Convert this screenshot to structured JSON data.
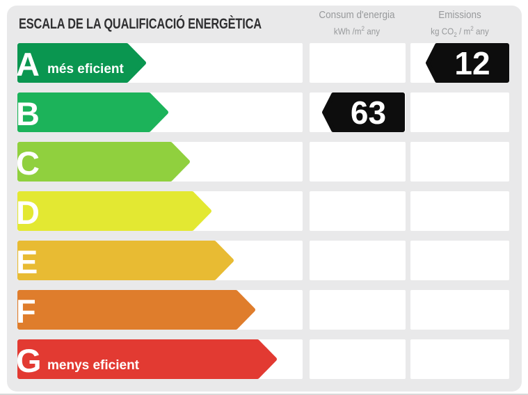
{
  "title": "ESCALA DE LA QUALIFICACIÓ ENERGÈTICA",
  "columns": {
    "consum": {
      "title": "Consum d'energia",
      "unit": {
        "pre": "kWh /m",
        "sup": "2",
        "post": " any"
      }
    },
    "emissions": {
      "title": "Emissions",
      "unit": {
        "pre": "kg CO",
        "sub": "2",
        "mid": " / m",
        "sup": "2",
        "post": " any"
      }
    }
  },
  "ratings": [
    {
      "letter": "A",
      "label": "més eficient",
      "color": "#0a9650"
    },
    {
      "letter": "B",
      "label": "",
      "color": "#1cb35a"
    },
    {
      "letter": "C",
      "label": "",
      "color": "#90d03e"
    },
    {
      "letter": "D",
      "label": "",
      "color": "#e3e832"
    },
    {
      "letter": "E",
      "label": "",
      "color": "#e8bb33"
    },
    {
      "letter": "F",
      "label": "",
      "color": "#df7d2c"
    },
    {
      "letter": "G",
      "label": "menys eficient",
      "color": "#e23a32"
    }
  ],
  "indicators": {
    "consum": {
      "row": "B",
      "value": "63"
    },
    "emissions": {
      "row": "A",
      "value": "12"
    }
  },
  "colors": {
    "card_bg": "#e9e9ea",
    "box_bg": "#ffffff",
    "indicator": "#0d0d0d",
    "title_text": "#2f2f31",
    "header_text": "#97999b"
  },
  "chart_data": {
    "type": "bar",
    "title": "ESCALA DE LA QUALIFICACIÓ ENERGÈTICA",
    "categories": [
      "A",
      "B",
      "C",
      "D",
      "E",
      "F",
      "G"
    ],
    "category_notes": {
      "A": "més eficient",
      "G": "menys eficient"
    },
    "category_colors": [
      "#0a9650",
      "#1cb35a",
      "#90d03e",
      "#e3e832",
      "#e8bb33",
      "#df7d2c",
      "#e23a32"
    ],
    "series": [
      {
        "name": "Consum d'energia (kWh/m2 any)",
        "rating": "B",
        "value": 63
      },
      {
        "name": "Emissions (kg CO2/m2 any)",
        "rating": "A",
        "value": 12
      }
    ],
    "legend_position": "top",
    "grid": false
  }
}
